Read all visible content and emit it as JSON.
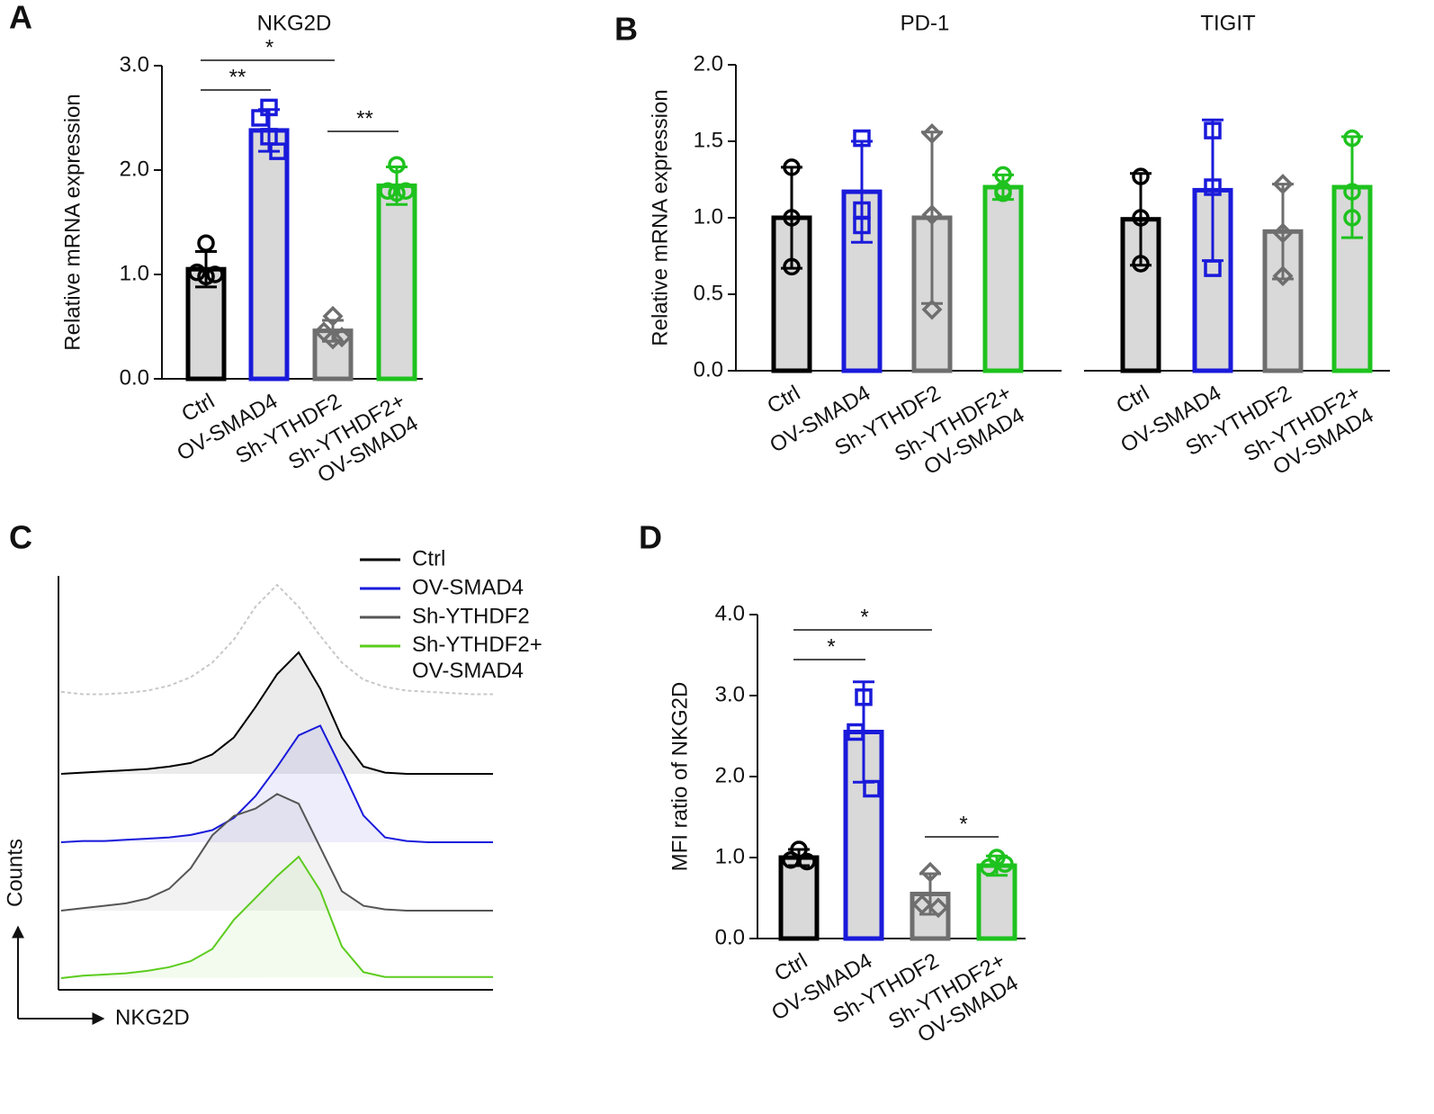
{
  "chart_data": [
    {
      "type": "bar",
      "panel": "A",
      "title": "NKG2D",
      "ylabel": "Relative mRNA expression",
      "categories": [
        "Ctrl",
        "OV-SMAD4",
        "Sh-YTHDF2",
        "Sh-YTHDF2+\nOV-SMAD4"
      ],
      "colors": [
        "#000000",
        "#1a1adb",
        "#6e6e6e",
        "#1ec21e"
      ],
      "markers": [
        "circle",
        "square",
        "diamond",
        "circle"
      ],
      "ylim": [
        0,
        3
      ],
      "yticks": [
        {
          "value": 0,
          "label": "0.0"
        },
        {
          "value": 1,
          "label": "1.0"
        },
        {
          "value": 2,
          "label": "2.0"
        },
        {
          "value": 3,
          "label": "3.0"
        }
      ],
      "values": [
        1.05,
        2.38,
        0.46,
        1.85
      ],
      "errors": [
        0.17,
        0.2,
        0.1,
        0.18
      ],
      "points": [
        [
          1.3,
          1.02,
          0.98,
          1.0
        ],
        [
          2.6,
          2.5,
          2.32,
          2.18
        ],
        [
          0.6,
          0.45,
          0.38,
          0.4
        ],
        [
          2.05,
          1.8,
          1.78,
          1.8
        ]
      ],
      "annotations": [
        "**",
        "*",
        "**"
      ]
    },
    {
      "type": "grouped-bar",
      "panel": "B",
      "ylabel": "Relative mRNA expression",
      "categories": [
        "Ctrl",
        "OV-SMAD4",
        "Sh-YTHDF2",
        "Sh-YTHDF2+\nOV-SMAD4"
      ],
      "colors": [
        "#000000",
        "#1a1adb",
        "#6e6e6e",
        "#1ec21e"
      ],
      "markers": [
        "circle",
        "square",
        "diamond",
        "circle"
      ],
      "ylim": [
        0,
        2
      ],
      "yticks": [
        {
          "value": 0,
          "label": "0.0"
        },
        {
          "value": 0.5,
          "label": "0.5"
        },
        {
          "value": 1,
          "label": "1.0"
        },
        {
          "value": 1.5,
          "label": "1.5"
        },
        {
          "value": 2,
          "label": "2.0"
        }
      ],
      "groups": [
        {
          "title": "PD-1",
          "values": [
            1.0,
            1.17,
            1.0,
            1.2
          ],
          "errors": [
            0.33,
            0.33,
            0.56,
            0.08
          ],
          "points": [
            [
              1.33,
              1.0,
              0.68
            ],
            [
              1.52,
              1.05,
              0.95
            ],
            [
              1.55,
              1.02,
              0.4
            ],
            [
              1.28,
              1.18,
              1.16
            ]
          ]
        },
        {
          "title": "TIGIT",
          "values": [
            0.99,
            1.18,
            0.91,
            1.2
          ],
          "errors": [
            0.3,
            0.46,
            0.31,
            0.33
          ],
          "points": [
            [
              1.27,
              1.0,
              0.7
            ],
            [
              1.57,
              1.2,
              0.67
            ],
            [
              1.22,
              0.9,
              0.62
            ],
            [
              1.52,
              1.17,
              1.0
            ]
          ]
        }
      ]
    },
    {
      "type": "area",
      "panel": "C",
      "xlabel": "NKG2D",
      "ylabel": "Counts",
      "xscale": "log",
      "series": [
        {
          "color": "#c8c8c8",
          "dash": true,
          "values": [
            12,
            10,
            10,
            11,
            13,
            17,
            24,
            36,
            55,
            82,
            100,
            82,
            58,
            36,
            22,
            16,
            13,
            12,
            11,
            10,
            10
          ]
        },
        {
          "name": "Ctrl",
          "color": "#000000",
          "values": [
            0,
            1,
            2,
            3,
            4,
            6,
            9,
            16,
            30,
            55,
            82,
            100,
            70,
            30,
            6,
            1,
            0,
            0,
            0,
            0,
            0
          ]
        },
        {
          "name": "OV-SMAD4",
          "color": "#1a1adb",
          "values": [
            0,
            1,
            1,
            2,
            3,
            4,
            6,
            10,
            20,
            38,
            62,
            88,
            96,
            60,
            22,
            4,
            1,
            0,
            0,
            0,
            0
          ]
        },
        {
          "name": "Sh-YTHDF2",
          "color": "#555555",
          "values": [
            0,
            2,
            4,
            6,
            10,
            18,
            35,
            62,
            78,
            84,
            96,
            88,
            52,
            16,
            4,
            1,
            0,
            0,
            0,
            0,
            0
          ]
        },
        {
          "name": "Sh-YTHDF2+\nOV-SMAD4",
          "color": "#5ccc1e",
          "values": [
            0,
            2,
            3,
            4,
            6,
            9,
            14,
            24,
            48,
            66,
            84,
            100,
            72,
            26,
            5,
            1,
            1,
            1,
            1,
            1,
            1
          ]
        }
      ]
    },
    {
      "type": "bar",
      "panel": "D",
      "ylabel": "MFI ratio of NKG2D",
      "categories": [
        "Ctrl",
        "OV-SMAD4",
        "Sh-YTHDF2",
        "Sh-YTHDF2+\nOV-SMAD4"
      ],
      "colors": [
        "#000000",
        "#1a1adb",
        "#6e6e6e",
        "#1ec21e"
      ],
      "markers": [
        "circle",
        "square",
        "diamond",
        "circle"
      ],
      "ylim": [
        0,
        4
      ],
      "yticks": [
        {
          "value": 0,
          "label": "0.0"
        },
        {
          "value": 1,
          "label": "1.0"
        },
        {
          "value": 2,
          "label": "2.0"
        },
        {
          "value": 3,
          "label": "3.0"
        },
        {
          "value": 4,
          "label": "4.0"
        }
      ],
      "values": [
        1.0,
        2.55,
        0.55,
        0.9
      ],
      "errors": [
        0.1,
        0.62,
        0.25,
        0.12
      ],
      "points": [
        [
          1.1,
          0.97,
          0.95
        ],
        [
          2.98,
          2.55,
          1.85
        ],
        [
          0.82,
          0.42,
          0.38
        ],
        [
          1.0,
          0.88,
          0.92
        ]
      ],
      "annotations": [
        "*",
        "*",
        "*"
      ]
    }
  ]
}
